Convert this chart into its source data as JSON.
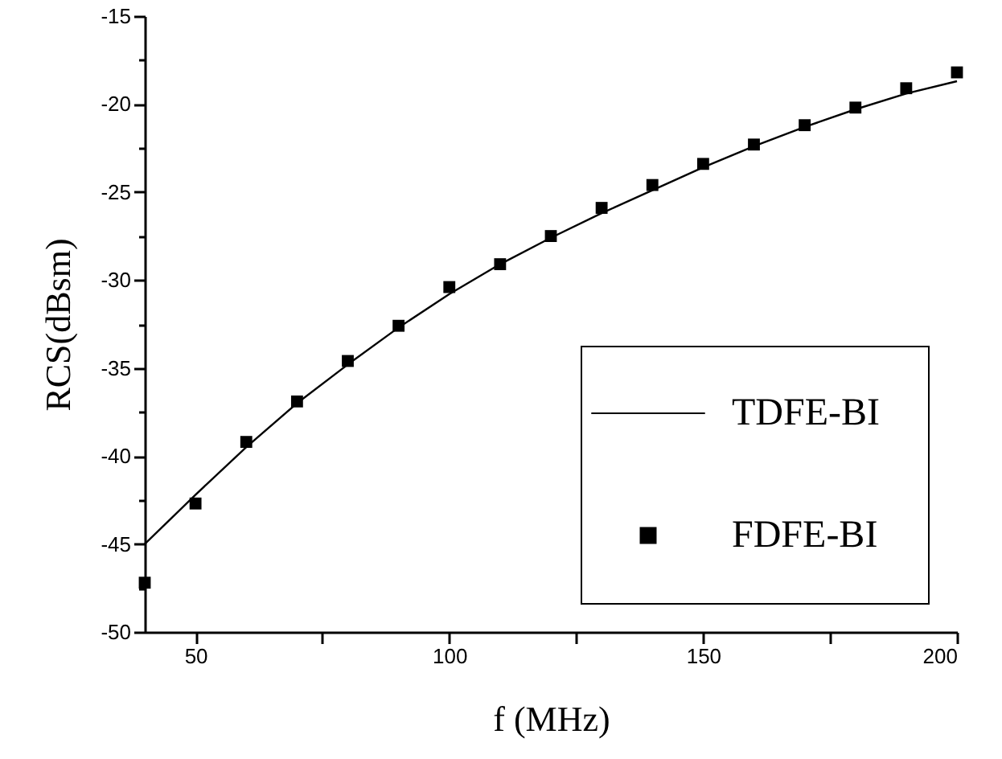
{
  "chart_data": {
    "type": "line",
    "xlabel": "f (MHz)",
    "ylabel": "RCS(dBsm)",
    "xlim": [
      40,
      200
    ],
    "xticks": [
      50,
      {
        "value": 75,
        "label": null
      },
      100,
      {
        "value": 125,
        "label": null
      },
      150,
      {
        "value": 175,
        "label": null
      },
      200
    ],
    "ylim": [
      -50,
      -15
    ],
    "yticks": [
      -50,
      {
        "value": -47.5,
        "label": null
      },
      -45,
      {
        "value": -42.5,
        "label": null
      },
      -40,
      {
        "value": -37.5,
        "label": null
      },
      -35,
      {
        "value": -32.5,
        "label": null
      },
      -30,
      {
        "value": -27.5,
        "label": null
      },
      -25,
      {
        "value": -22.5,
        "label": null
      },
      -20,
      {
        "value": -17.5,
        "label": null
      },
      -15
    ],
    "grid": false,
    "legend": "bottom right",
    "series": [
      {
        "name": "TDFE-BI",
        "color": "#000000",
        "marker": "none",
        "line_style": "solid",
        "x": [
          40,
          50,
          60,
          70,
          80,
          90,
          100,
          110,
          120,
          130,
          140,
          150,
          160,
          170,
          180,
          190,
          200
        ],
        "values": [
          -45,
          -42.2,
          -39.5,
          -37.0,
          -34.8,
          -32.7,
          -30.8,
          -29.1,
          -27.6,
          -26.2,
          -24.9,
          -23.6,
          -22.4,
          -21.3,
          -20.3,
          -19.4,
          -18.7
        ]
      },
      {
        "name": "FDFE-BI",
        "type": "scatter",
        "color": "#000000",
        "marker": "square",
        "x": [
          40,
          50,
          60,
          70,
          80,
          90,
          100,
          110,
          120,
          130,
          140,
          150,
          160,
          170,
          180,
          190,
          200
        ],
        "values": [
          -47.2,
          -42.7,
          -39.2,
          -36.9,
          -34.6,
          -32.6,
          -30.4,
          -29.1,
          -27.5,
          -25.9,
          -24.6,
          -23.4,
          -22.3,
          -21.2,
          -20.2,
          -19.1,
          -18.2
        ]
      }
    ]
  }
}
